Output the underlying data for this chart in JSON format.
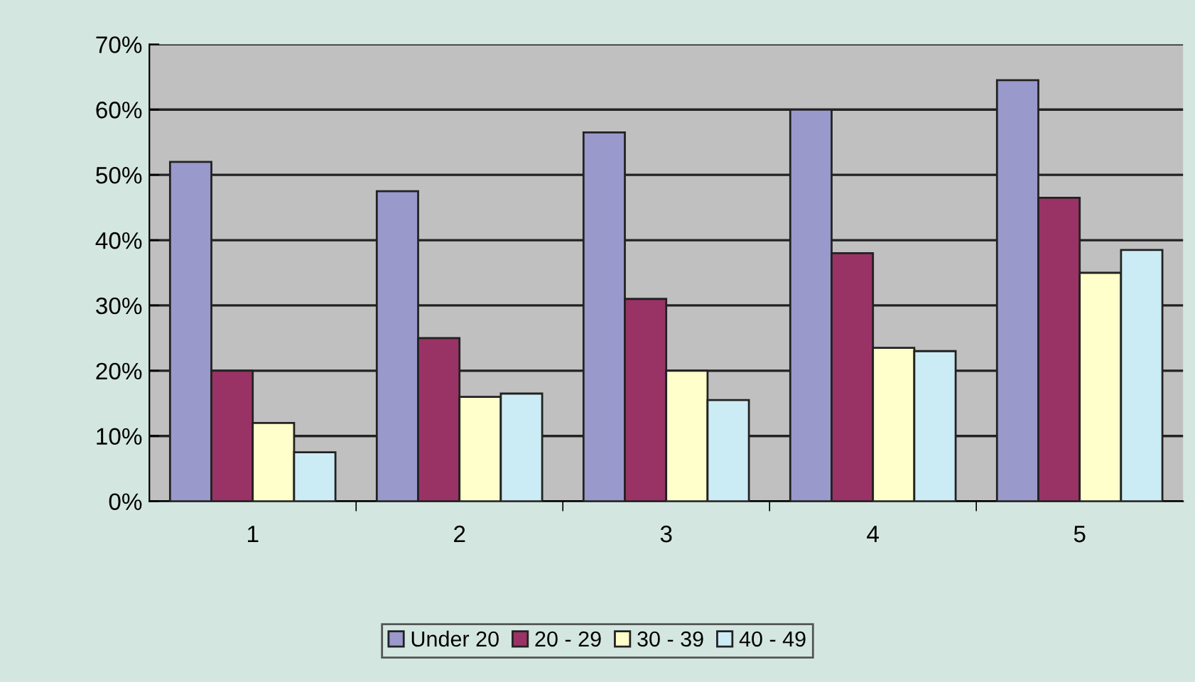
{
  "chart_data": {
    "type": "bar",
    "categories": [
      "1",
      "2",
      "3",
      "4",
      "5"
    ],
    "series": [
      {
        "name": "Under 20",
        "color": "#9999cc",
        "values": [
          52,
          47.5,
          56.5,
          60,
          64.5
        ]
      },
      {
        "name": "20 - 29",
        "color": "#993366",
        "values": [
          20,
          25,
          31,
          38,
          46.5
        ]
      },
      {
        "name": "30 - 39",
        "color": "#ffffcc",
        "values": [
          12,
          16,
          20,
          23.5,
          35
        ]
      },
      {
        "name": "40 - 49",
        "color": "#ccecf5",
        "values": [
          7.5,
          16.5,
          15.5,
          23,
          38.5
        ]
      }
    ],
    "ylim": [
      0,
      70
    ],
    "yticks": [
      {
        "value": 0,
        "label": "0%"
      },
      {
        "value": 10,
        "label": "10%"
      },
      {
        "value": 20,
        "label": "20%"
      },
      {
        "value": 30,
        "label": "30%"
      },
      {
        "value": 40,
        "label": "40%"
      },
      {
        "value": 50,
        "label": "50%"
      },
      {
        "value": 60,
        "label": "60%"
      },
      {
        "value": 70,
        "label": "70%"
      }
    ],
    "grid": "y",
    "legend": "bottom"
  }
}
